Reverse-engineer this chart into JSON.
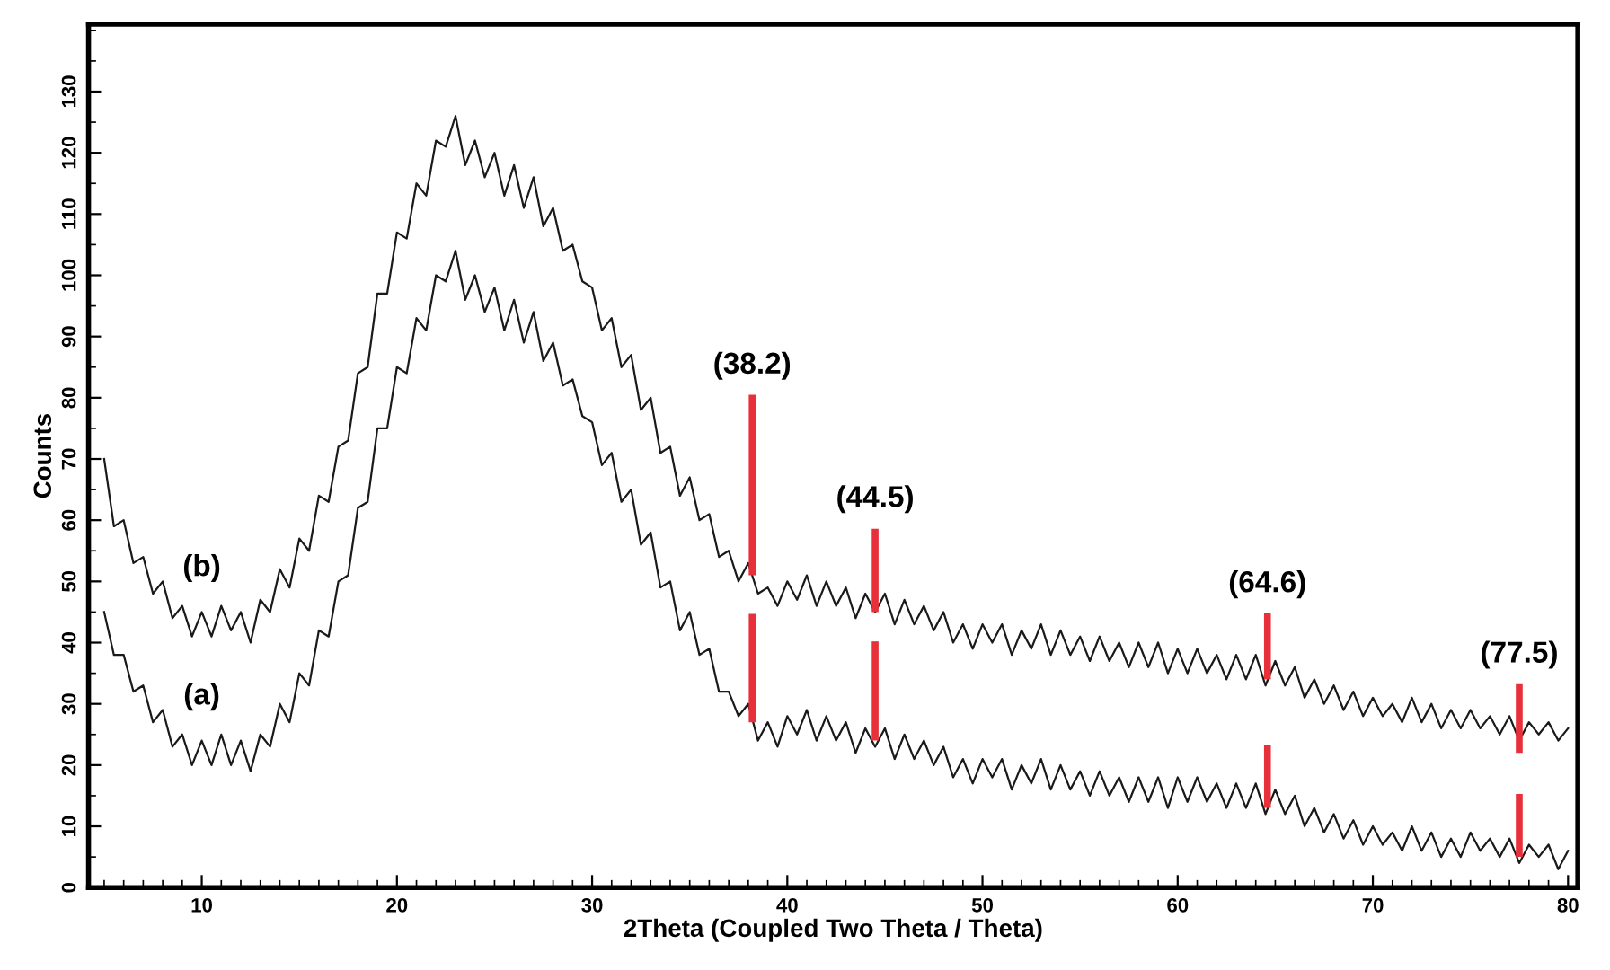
{
  "chart_data": {
    "type": "line",
    "xlabel": "2Theta (Coupled Two Theta / Theta)",
    "ylabel": "Counts",
    "xlim": [
      4.2,
      80.5
    ],
    "ylim": [
      0,
      141
    ],
    "xticks": [
      10,
      20,
      30,
      40,
      50,
      60,
      70,
      80
    ],
    "yticks": [
      0,
      10,
      20,
      30,
      40,
      50,
      60,
      70,
      80,
      90,
      100,
      110,
      120,
      130
    ],
    "grid": false,
    "legend": false,
    "x": [
      5,
      5.5,
      6,
      6.5,
      7,
      7.5,
      8,
      8.5,
      9,
      9.5,
      10,
      10.5,
      11,
      11.5,
      12,
      12.5,
      13,
      13.5,
      14,
      14.5,
      15,
      15.5,
      16,
      16.5,
      17,
      17.5,
      18,
      18.5,
      19,
      19.5,
      20,
      20.5,
      21,
      21.5,
      22,
      22.5,
      23,
      23.5,
      24,
      24.5,
      25,
      25.5,
      26,
      26.5,
      27,
      27.5,
      28,
      28.5,
      29,
      29.5,
      30,
      30.5,
      31,
      31.5,
      32,
      32.5,
      33,
      33.5,
      34,
      34.5,
      35,
      35.5,
      36,
      36.5,
      37,
      37.5,
      38,
      38.5,
      39,
      39.5,
      40,
      40.5,
      41,
      41.5,
      42,
      42.5,
      43,
      43.5,
      44,
      44.5,
      45,
      45.5,
      46,
      46.5,
      47,
      47.5,
      48,
      48.5,
      49,
      49.5,
      50,
      50.5,
      51,
      51.5,
      52,
      52.5,
      53,
      53.5,
      54,
      54.5,
      55,
      55.5,
      56,
      56.5,
      57,
      57.5,
      58,
      58.5,
      59,
      59.5,
      60,
      60.5,
      61,
      61.5,
      62,
      62.5,
      63,
      63.5,
      64,
      64.5,
      65,
      65.5,
      66,
      66.5,
      67,
      67.5,
      68,
      68.5,
      69,
      69.5,
      70,
      70.5,
      71,
      71.5,
      72,
      72.5,
      73,
      73.5,
      74,
      74.5,
      75,
      75.5,
      76,
      76.5,
      77,
      77.5,
      78,
      78.5,
      79,
      79.5,
      80
    ],
    "series": [
      {
        "name": "(b)",
        "color": "#1a1a1a",
        "values": [
          70,
          59,
          60,
          53,
          54,
          48,
          50,
          44,
          46,
          41,
          45,
          41,
          46,
          42,
          45,
          40,
          47,
          45,
          52,
          49,
          57,
          55,
          64,
          63,
          72,
          73,
          84,
          85,
          97,
          97,
          107,
          106,
          115,
          113,
          122,
          121,
          126,
          118,
          122,
          116,
          120,
          113,
          118,
          111,
          116,
          108,
          111,
          104,
          105,
          99,
          98,
          91,
          93,
          85,
          87,
          78,
          80,
          71,
          72,
          64,
          67,
          60,
          61,
          54,
          55,
          50,
          53,
          48,
          49,
          46,
          50,
          47,
          51,
          46,
          50,
          46,
          49,
          44,
          48,
          45,
          48,
          43,
          47,
          43,
          46,
          42,
          45,
          40,
          43,
          39,
          43,
          40,
          43,
          38,
          42,
          39,
          43,
          38,
          42,
          38,
          41,
          37,
          41,
          37,
          40,
          36,
          40,
          36,
          40,
          35,
          39,
          35,
          39,
          35,
          38,
          34,
          38,
          34,
          38,
          33,
          37,
          33,
          36,
          31,
          34,
          30,
          33,
          29,
          32,
          28,
          31,
          28,
          30,
          27,
          31,
          27,
          30,
          26,
          29,
          26,
          29,
          26,
          28,
          25,
          28,
          24,
          27,
          25,
          27,
          24,
          26
        ]
      },
      {
        "name": "(a)",
        "color": "#1a1a1a",
        "values": [
          45,
          38,
          38,
          32,
          33,
          27,
          29,
          23,
          25,
          20,
          24,
          20,
          25,
          20,
          24,
          19,
          25,
          23,
          30,
          27,
          35,
          33,
          42,
          41,
          50,
          51,
          62,
          63,
          75,
          75,
          85,
          84,
          93,
          91,
          100,
          99,
          104,
          96,
          100,
          94,
          98,
          91,
          96,
          89,
          94,
          86,
          89,
          82,
          83,
          77,
          76,
          69,
          71,
          63,
          65,
          56,
          58,
          49,
          50,
          42,
          45,
          38,
          39,
          32,
          32,
          28,
          30,
          24,
          27,
          23,
          28,
          25,
          29,
          24,
          28,
          24,
          27,
          22,
          26,
          23,
          26,
          21,
          25,
          21,
          24,
          20,
          23,
          18,
          21,
          17,
          21,
          18,
          21,
          16,
          20,
          17,
          21,
          16,
          20,
          16,
          19,
          15,
          19,
          15,
          18,
          14,
          18,
          14,
          18,
          13,
          18,
          14,
          18,
          14,
          17,
          13,
          17,
          13,
          17,
          12,
          16,
          12,
          15,
          10,
          13,
          9,
          12,
          8,
          11,
          7,
          10,
          7,
          9,
          6,
          10,
          6,
          9,
          5,
          8,
          5,
          9,
          6,
          8,
          5,
          8,
          4,
          7,
          5,
          7,
          3,
          6
        ]
      },
      {
        "type": "bar",
        "color": "#e8303a",
        "x": [
          38.2,
          44.5,
          64.6,
          77.5
        ],
        "base": [
          51,
          45,
          34,
          22
        ],
        "values": [
          29.5,
          13.6,
          10.9,
          11.2
        ]
      },
      {
        "type": "bar",
        "color": "#e8303a",
        "x": [
          38.2,
          44.5,
          64.6,
          77.5
        ],
        "base": [
          27,
          24,
          13,
          5
        ],
        "values": [
          17.7,
          16.2,
          10.3,
          10.3
        ]
      }
    ],
    "annotations": [
      {
        "text": "(38.2)",
        "x": 38.2,
        "y": 80.5
      },
      {
        "text": "(44.5)",
        "x": 44.5,
        "y": 58.7
      },
      {
        "text": "(64.6)",
        "x": 64.6,
        "y": 44.8
      },
      {
        "text": "(77.5)",
        "x": 77.5,
        "y": 33.3
      }
    ]
  }
}
